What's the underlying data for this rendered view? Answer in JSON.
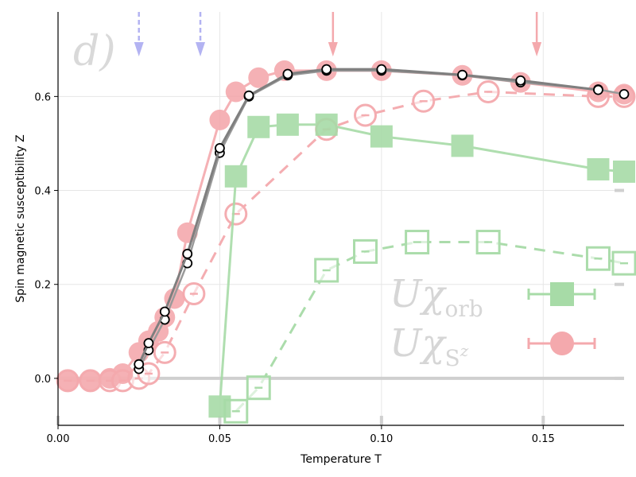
{
  "chart_data": {
    "type": "line",
    "xlabel": "Temperature T",
    "ylabel": "Spin magnetic susceptibility Z",
    "xlim": [
      0.0,
      0.175
    ],
    "ylim": [
      -0.1,
      0.78
    ],
    "xticks": [
      0.0,
      0.05,
      0.1,
      0.15
    ],
    "xtick_labels": [
      "0.00",
      "0.05",
      "0.10",
      "0.15"
    ],
    "yticks": [
      0.0,
      0.2,
      0.4,
      0.6
    ],
    "ytick_labels": [
      "0.0",
      "0.2",
      "0.4",
      "0.6"
    ],
    "grid": true,
    "panel_label": "d)",
    "colors": {
      "red": "#f4a9ad",
      "green": "#a7dba7",
      "blue": "#b3b3f2",
      "dark": "#7f7f7f",
      "grid": "#e6e6e6"
    },
    "arrows": [
      {
        "x": 0.025,
        "color": "blue"
      },
      {
        "x": 0.044,
        "color": "blue"
      },
      {
        "x": 0.085,
        "color": "red"
      },
      {
        "x": 0.148,
        "color": "red"
      }
    ],
    "series": [
      {
        "style": "red-filled-solid",
        "x": [
          0.003,
          0.01,
          0.016,
          0.02,
          0.025,
          0.028,
          0.031,
          0.033,
          0.036,
          0.04,
          0.05,
          0.055,
          0.062,
          0.07,
          0.083,
          0.1,
          0.125,
          0.143,
          0.167,
          0.175
        ],
        "y": [
          -0.005,
          -0.005,
          0.0,
          0.01,
          0.055,
          0.08,
          0.1,
          0.13,
          0.17,
          0.31,
          0.55,
          0.61,
          0.64,
          0.655,
          0.655,
          0.655,
          0.645,
          0.63,
          0.61,
          0.605
        ]
      },
      {
        "style": "red-open-dashed",
        "x": [
          0.003,
          0.01,
          0.016,
          0.02,
          0.025,
          0.028,
          0.033,
          0.042,
          0.055,
          0.083,
          0.095,
          0.113,
          0.133,
          0.167,
          0.175
        ],
        "y": [
          -0.005,
          -0.005,
          -0.005,
          -0.005,
          0.0,
          0.01,
          0.055,
          0.18,
          0.35,
          0.53,
          0.56,
          0.59,
          0.61,
          0.6,
          0.6
        ]
      },
      {
        "style": "green-filled-solid",
        "x": [
          0.05,
          0.055,
          0.062,
          0.071,
          0.083,
          0.1,
          0.125,
          0.167,
          0.175
        ],
        "y": [
          -0.06,
          0.43,
          0.535,
          0.54,
          0.54,
          0.515,
          0.495,
          0.445,
          0.44
        ]
      },
      {
        "style": "green-open-dashed",
        "x": [
          0.055,
          0.062,
          0.083,
          0.095,
          0.111,
          0.133,
          0.167,
          0.175
        ],
        "y": [
          -0.07,
          -0.02,
          0.23,
          0.27,
          0.29,
          0.29,
          0.255,
          0.245
        ]
      },
      {
        "style": "white-open-solid-a",
        "x": [
          0.025,
          0.028,
          0.033,
          0.04,
          0.05,
          0.059,
          0.071,
          0.083,
          0.1,
          0.125,
          0.143,
          0.167,
          0.175
        ],
        "y": [
          0.02,
          0.06,
          0.125,
          0.245,
          0.48,
          0.6,
          0.645,
          0.655,
          0.655,
          0.645,
          0.63,
          0.615,
          0.605
        ]
      },
      {
        "style": "white-open-solid-b",
        "x": [
          0.025,
          0.028,
          0.033,
          0.04,
          0.05,
          0.059,
          0.071,
          0.083,
          0.1,
          0.125,
          0.143,
          0.167
        ],
        "y": [
          0.03,
          0.075,
          0.142,
          0.265,
          0.49,
          0.602,
          0.648,
          0.658,
          0.658,
          0.646,
          0.634,
          0.614
        ]
      }
    ],
    "legend": {
      "placement": "bottom-right",
      "entries": [
        {
          "base": "Uχ",
          "sub": "orb",
          "color": "green"
        },
        {
          "base": "Uχ",
          "sub": "S",
          "subsup": "z",
          "color": "red"
        }
      ]
    }
  }
}
